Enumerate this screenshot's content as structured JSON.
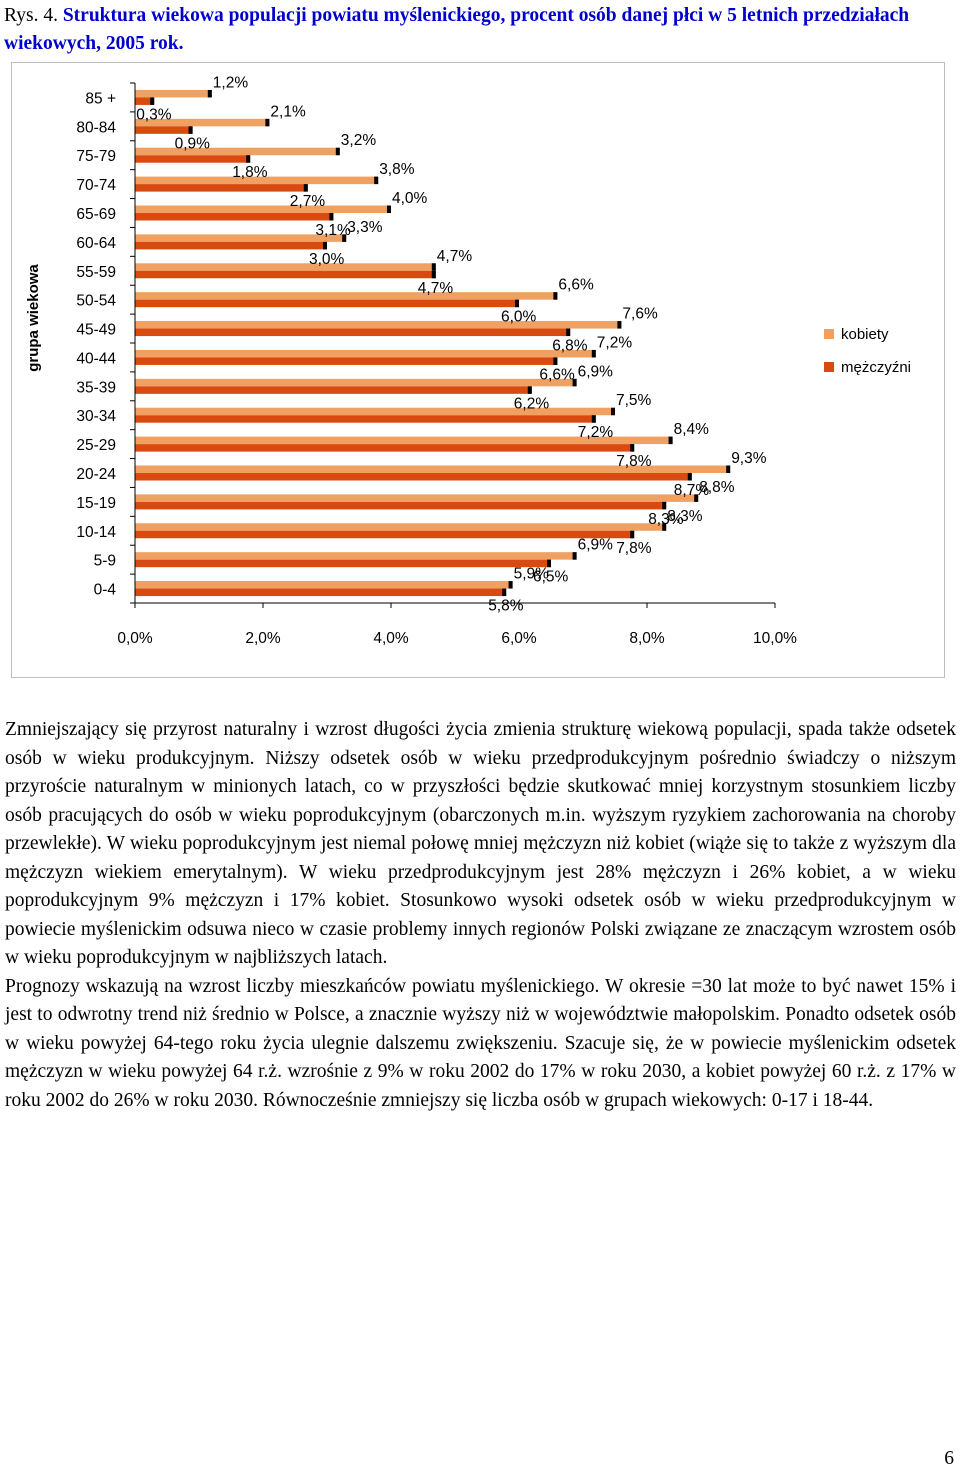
{
  "caption": {
    "prefix": "Rys. 4. ",
    "text": "Struktura wiekowa populacji powiatu myślenickiego, procent osób danej płci w 5 letnich przedziałach wiekowych, 2005 rok."
  },
  "chart_data": {
    "type": "bar",
    "orientation": "horizontal",
    "title": "",
    "xlabel": "",
    "ylabel": "grupa wiekowa",
    "xlim": [
      0,
      10
    ],
    "x_ticks": [
      "0,0%",
      "2,0%",
      "4,0%",
      "6,0%",
      "8,0%",
      "10,0%"
    ],
    "grid": false,
    "legend_position": "right",
    "categories": [
      "85 +",
      "80-84",
      "75-79",
      "70-74",
      "65-69",
      "60-64",
      "55-59",
      "50-54",
      "45-49",
      "40-44",
      "35-39",
      "30-34",
      "25-29",
      "20-24",
      "15-19",
      "10-14",
      "5-9",
      "0-4"
    ],
    "series": [
      {
        "name": "kobiety",
        "color": "#f0a060",
        "values": [
          1.2,
          2.1,
          3.2,
          3.8,
          4.0,
          3.3,
          4.7,
          6.6,
          7.6,
          7.2,
          6.9,
          7.5,
          8.4,
          9.3,
          8.8,
          8.3,
          6.9,
          5.9
        ],
        "labels": [
          "1,2%",
          "2,1%",
          "3,2%",
          "3,8%",
          "4,0%",
          "3,3%",
          "4,7%",
          "6,6%",
          "7,6%",
          "7,2%",
          "6,9%",
          "7,5%",
          "8,4%",
          "9,3%",
          "8,8%",
          "8,3%",
          "6,9%",
          "5,9%"
        ]
      },
      {
        "name": "mężczyźni",
        "color": "#d84a10",
        "values": [
          0.3,
          0.9,
          1.8,
          2.7,
          3.1,
          3.0,
          4.7,
          6.0,
          6.8,
          6.6,
          6.2,
          7.2,
          7.8,
          8.7,
          8.3,
          7.8,
          6.5,
          5.8
        ],
        "labels": [
          "0,3%",
          "0,9%",
          "1,8%",
          "2,7%",
          "3,1%",
          "3,0%",
          "4,7%",
          "6,0%",
          "6,8%",
          "6,6%",
          "6,2%",
          "7,2%",
          "7,8%",
          "8,7%",
          "8,3%",
          "7,8%",
          "6,5%",
          "5,8%"
        ]
      }
    ]
  },
  "article": {
    "paragraphs": [
      "Zmniejszający się przyrost naturalny i wzrost długości życia zmienia strukturę wiekową populacji, spada także odsetek osób w wieku produkcyjnym. Niższy odsetek osób w wieku przedprodukcyjnym pośrednio świadczy o niższym przyroście naturalnym w minionych latach, co w przyszłości będzie skutkować mniej korzystnym stosunkiem liczby osób pracujących do osób w wieku poprodukcyjnym (obarczonych m.in. wyższym ryzykiem zachorowania na choroby przewlekłe). W wieku poprodukcyjnym jest niemal połowę mniej mężczyzn niż kobiet (wiąże się to także z wyższym dla mężczyzn wiekiem emerytalnym). W wieku przedprodukcyjnym jest 28% mężczyzn i 26% kobiet, a w wieku poprodukcyjnym 9% mężczyzn i 17% kobiet. Stosunkowo wysoki odsetek osób w wieku przedprodukcyjnym w powiecie myślenickim odsuwa nieco w czasie problemy innych regionów Polski związane ze znaczącym wzrostem osób w wieku poprodukcyjnym w najbliższych latach.",
      "Prognozy wskazują na wzrost liczby mieszkańców powiatu myślenickiego. W okresie =30 lat może to być nawet 15%  i jest to odwrotny trend niż średnio w Polsce, a znacznie wyższy niż w województwie małopolskim. Ponadto odsetek osób w wieku powyżej 64-tego roku życia ulegnie dalszemu zwiększeniu. Szacuje się, że w powiecie myślenickim odsetek mężczyzn w wieku powyżej 64 r.ż. wzrośnie z 9% w roku 2002 do 17% w roku 2030, a kobiet powyżej 60 r.ż. z 17% w roku 2002 do 26% w roku 2030. Równocześnie zmniejszy się liczba osób w grupach wiekowych: 0-17 i 18-44."
    ]
  },
  "page_number": "6"
}
